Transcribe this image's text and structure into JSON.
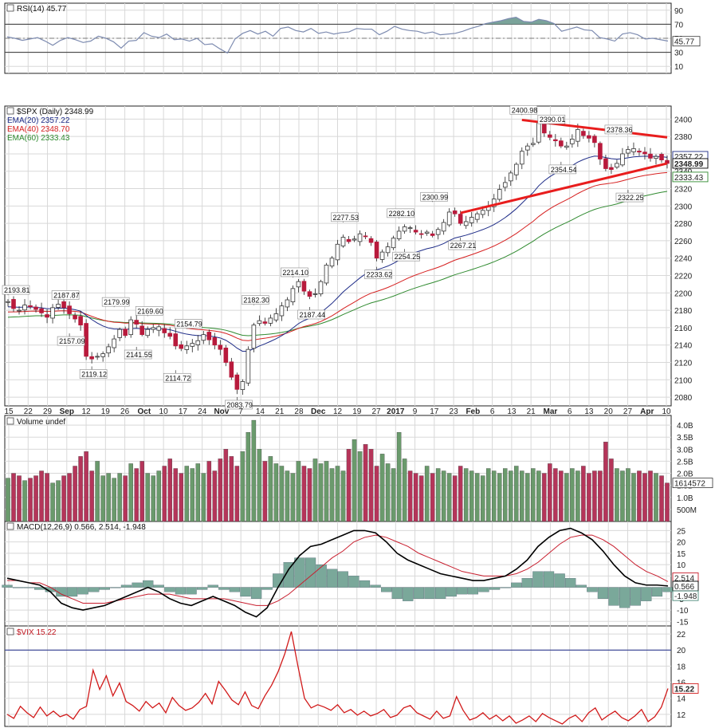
{
  "chart_data": [
    {
      "type": "line",
      "title": "RSI(14) 45.77",
      "y_ticks": [
        90,
        70,
        50,
        30,
        10
      ],
      "ylim": [
        0,
        100
      ],
      "reference_lines": [
        70,
        30
      ],
      "last_value": "45.77",
      "series": [
        {
          "name": "RSI(14)",
          "values": [
            52,
            50,
            47,
            49,
            51,
            46,
            40,
            47,
            51,
            48,
            44,
            46,
            53,
            50,
            45,
            36,
            46,
            47,
            58,
            53,
            51,
            56,
            48,
            49,
            46,
            50,
            41,
            42,
            35,
            29,
            49,
            57,
            61,
            56,
            60,
            53,
            64,
            66,
            61,
            59,
            64,
            57,
            59,
            56,
            58,
            59,
            64,
            63,
            63,
            55,
            60,
            67,
            63,
            61,
            60,
            57,
            59,
            55,
            56,
            57,
            60,
            64,
            67,
            71,
            73,
            75,
            78,
            80,
            74,
            73,
            77,
            75,
            71,
            60,
            63,
            66,
            62,
            61,
            51,
            49,
            46,
            56,
            58,
            55,
            49,
            50,
            48,
            46
          ]
        }
      ]
    },
    {
      "type": "candlestick",
      "title": "$SPX (Daily) 2348.99",
      "legend": [
        "EMA(20) 2357.22",
        "EMA(40) 2348.70",
        "EMA(60) 2333.43"
      ],
      "y_ticks": [
        2400,
        2380,
        2360,
        2340,
        2320,
        2300,
        2280,
        2260,
        2240,
        2220,
        2200,
        2180,
        2160,
        2140,
        2120,
        2100,
        2080
      ],
      "ylim": [
        2070,
        2415
      ],
      "x_tick_labels": [
        "15",
        "22",
        "29",
        "Sep",
        "12",
        "19",
        "26",
        "Oct",
        "10",
        "17",
        "24",
        "Nov",
        "7",
        "14",
        "21",
        "28",
        "Dec",
        "12",
        "19",
        "27",
        "2017",
        "9",
        "17",
        "23",
        "Feb",
        "6",
        "13",
        "21",
        "Mar",
        "6",
        "13",
        "20",
        "27",
        "Apr",
        "10"
      ],
      "price_labels": [
        "2357.22",
        "2348.99",
        "2333.43"
      ],
      "annotations": [
        "2193.81",
        "2187.87",
        "2157.09",
        "2119.12",
        "2179.99",
        "2141.55",
        "2169.60",
        "2114.72",
        "2154.79",
        "2083.79",
        "2182.30",
        "2214.10",
        "2187.44",
        "2277.53",
        "2233.62",
        "2282.10",
        "2254.25",
        "2300.99",
        "2267.21",
        "2400.98",
        "2390.01",
        "2354.54",
        "2378.36",
        "2322.25"
      ],
      "close": [
        2190,
        2182,
        2180,
        2186,
        2184,
        2181,
        2177,
        2172,
        2183,
        2187,
        2183,
        2176,
        2170,
        2163,
        2127,
        2124,
        2127,
        2130,
        2138,
        2147,
        2158,
        2151,
        2169,
        2164,
        2152,
        2158,
        2160,
        2161,
        2154,
        2150,
        2139,
        2136,
        2139,
        2142,
        2145,
        2152,
        2146,
        2140,
        2135,
        2120,
        2103,
        2089,
        2098,
        2135,
        2163,
        2168,
        2165,
        2171,
        2176,
        2185,
        2192,
        2205,
        2213,
        2202,
        2196,
        2199,
        2213,
        2232,
        2240,
        2256,
        2264,
        2259,
        2262,
        2268,
        2265,
        2258,
        2240,
        2247,
        2253,
        2263,
        2271,
        2276,
        2275,
        2270,
        2268,
        2270,
        2266,
        2273,
        2281,
        2293,
        2291,
        2280,
        2282,
        2287,
        2291,
        2295,
        2300,
        2308,
        2319,
        2327,
        2338,
        2348,
        2363,
        2369,
        2372,
        2397,
        2384,
        2379,
        2375,
        2369,
        2369,
        2377,
        2388,
        2381,
        2378,
        2373,
        2354,
        2343,
        2342,
        2349,
        2360,
        2365,
        2366,
        2362,
        2360,
        2355,
        2357,
        2353,
        2349
      ]
    },
    {
      "type": "bar",
      "title": "Volume undef",
      "y_tick_labels": [
        "4.0B",
        "3.5B",
        "3.0B",
        "2.5B",
        "2.0B",
        "1.5B",
        "1.0B",
        "500M"
      ],
      "last_value_label": "1614572",
      "values": [
        1.8,
        2.0,
        1.9,
        1.7,
        1.8,
        1.9,
        2.1,
        2.0,
        1.6,
        1.7,
        1.9,
        2.0,
        2.3,
        2.7,
        2.9,
        2.1,
        2.5,
        1.9,
        2.0,
        1.8,
        2.0,
        1.9,
        2.4,
        2.2,
        2.5,
        2.0,
        1.9,
        2.1,
        2.3,
        2.6,
        2.2,
        2.0,
        2.3,
        2.2,
        2.4,
        2.0,
        2.5,
        2.1,
        2.6,
        3.0,
        2.7,
        2.3,
        2.9,
        3.7,
        4.2,
        3.0,
        2.5,
        2.7,
        2.4,
        2.3,
        2.1,
        2.0,
        2.5,
        2.3,
        2.2,
        2.6,
        2.4,
        2.5,
        2.2,
        2.3,
        2.1,
        3.0,
        3.4,
        2.9,
        3.2,
        3.0,
        2.3,
        2.8,
        2.4,
        2.2,
        3.7,
        2.6,
        2.1,
        2.0,
        1.9,
        2.3,
        2.0,
        2.2,
        2.1,
        2.0,
        1.9,
        2.3,
        2.2,
        2.1,
        2.0,
        1.9,
        2.2,
        2.1,
        2.0,
        2.2,
        2.1,
        2.3,
        2.1,
        2.0,
        2.2,
        2.1,
        2.0,
        2.4,
        2.2,
        2.1,
        2.0,
        2.2,
        2.1,
        2.3,
        2.0,
        2.1,
        2.1,
        3.3,
        2.6,
        2.2,
        2.1,
        2.2,
        2.0,
        2.1,
        2.0,
        2.1,
        2.0,
        1.9,
        1.6
      ]
    },
    {
      "type": "line",
      "title": "MACD(12,26,9) 0.566, 2.514, -1.948",
      "y_ticks": [
        25,
        20,
        15,
        10,
        5,
        0,
        -5,
        -10,
        -15
      ],
      "ylim": [
        -17,
        29
      ],
      "price_labels": [
        "2.514",
        "0.566",
        "-1.948"
      ],
      "series": [
        {
          "name": "MACD(12,26,9)",
          "values": [
            4,
            3,
            2,
            1,
            -2,
            -7,
            -9,
            -10,
            -9,
            -8,
            -6,
            -4,
            -2,
            0,
            -2,
            -5,
            -7,
            -8,
            -6,
            -4,
            -6,
            -8,
            -11,
            -13,
            -9,
            0,
            8,
            14,
            18,
            19,
            21,
            23,
            25,
            25,
            24,
            20,
            15,
            12,
            10,
            8,
            6,
            5,
            4,
            3,
            3,
            4,
            5,
            8,
            12,
            18,
            22,
            25,
            26,
            24,
            21,
            16,
            10,
            5,
            2,
            1,
            1,
            0.6
          ]
        },
        {
          "name": "signal",
          "values": [
            3,
            3,
            2,
            2,
            0,
            -3,
            -5,
            -7,
            -7,
            -7,
            -6,
            -5,
            -4,
            -3,
            -3,
            -3,
            -4,
            -5,
            -5,
            -5,
            -5,
            -6,
            -7,
            -8,
            -8,
            -6,
            -3,
            1,
            5,
            9,
            13,
            16,
            20,
            22,
            23,
            22,
            20,
            18,
            15,
            13,
            11,
            9,
            7,
            6,
            5,
            5,
            5,
            6,
            8,
            11,
            15,
            19,
            22,
            23,
            23,
            21,
            18,
            14,
            10,
            7,
            5,
            2.5
          ]
        }
      ],
      "histogram": [
        1,
        0,
        0,
        -1,
        -2,
        -4,
        -4,
        -3,
        -2,
        -1,
        0,
        1,
        2,
        3,
        1,
        -2,
        -3,
        -3,
        -1,
        1,
        -1,
        -2,
        -4,
        -5,
        -1,
        6,
        11,
        13,
        13,
        10,
        8,
        7,
        5,
        3,
        1,
        -2,
        -5,
        -6,
        -5,
        -5,
        -5,
        -4,
        -3,
        -3,
        -2,
        -1,
        0,
        2,
        4,
        7,
        7,
        6,
        4,
        1,
        -2,
        -5,
        -8,
        -9,
        -8,
        -6,
        -4,
        -2
      ]
    },
    {
      "type": "line",
      "title": "$VIX 15.22",
      "y_ticks": [
        22,
        20,
        18,
        16,
        14,
        12
      ],
      "ylim": [
        10.5,
        23
      ],
      "reference_lines": [
        20
      ],
      "last_value": "15.22",
      "series": [
        {
          "name": "$VIX",
          "values": [
            12,
            11.5,
            13,
            12.2,
            11.6,
            12.9,
            11.8,
            12.4,
            11.7,
            12,
            11.4,
            12.6,
            13,
            17.5,
            15.1,
            16.8,
            14.3,
            15.9,
            13.6,
            13.1,
            12.4,
            13.6,
            12.8,
            13.4,
            12.2,
            14.1,
            13.1,
            12.5,
            12.8,
            13.5,
            14.6,
            13.3,
            16.1,
            15,
            13.8,
            13.2,
            14.8,
            13.1,
            12.7,
            14.3,
            15.6,
            17.3,
            19.5,
            22.3,
            18,
            14,
            12.8,
            13.2,
            12.9,
            12.5,
            13.2,
            12.2,
            12.6,
            11.9,
            12.4,
            11.8,
            12.1,
            12.6,
            11.6,
            11.9,
            12.8,
            13.1,
            12.2,
            11.8,
            11.4,
            12.4,
            11.5,
            11.8,
            14.2,
            12.5,
            11.3,
            11.6,
            12.2,
            11.4,
            11.9,
            11.2,
            11.8,
            10.9,
            11.3,
            11.8,
            11.1,
            12.1,
            11.6,
            11.2,
            10.8,
            11.5,
            11.9,
            11.1,
            12.2,
            12.8,
            11.3,
            11.9,
            12.4,
            11.6,
            11.2,
            11.8,
            12.6,
            11.1,
            11.7,
            12.9,
            15.22
          ]
        }
      ]
    }
  ],
  "colors": {
    "up": "#6f9472",
    "down": "#b81a3c",
    "volume_up": "#6a9a6c",
    "volume_down": "#b5355a",
    "rsi_line": "#7d8bb0",
    "rsi_fill": "#7aa39a",
    "ema20": "#1d2b87",
    "ema40": "#d62020",
    "ema60": "#2f8a2f",
    "trendline": "#e81d1d",
    "macd": "#000000",
    "signal": "#c81e2e",
    "histogram": "#7aa89a",
    "vix": "#d11a1a",
    "grid": "#d8d8d8"
  }
}
